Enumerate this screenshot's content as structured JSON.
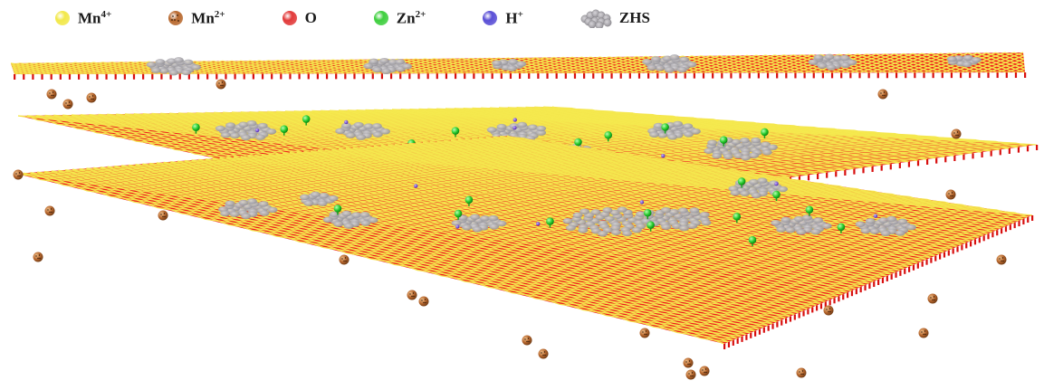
{
  "legend": [
    {
      "id": "mn4",
      "base": "Mn",
      "sup": "4+",
      "symbol": "sphere",
      "color": "#f2e84a"
    },
    {
      "id": "mn2",
      "base": "Mn",
      "sup": "2+",
      "symbol": "dotted-sphere",
      "color": "#b8692f"
    },
    {
      "id": "o",
      "base": "O",
      "sup": "",
      "symbol": "sphere",
      "color": "#e23a3a"
    },
    {
      "id": "zn2",
      "base": "Zn",
      "sup": "2+",
      "symbol": "sphere",
      "color": "#3fcf3f"
    },
    {
      "id": "h",
      "base": "H",
      "sup": "+",
      "symbol": "sphere",
      "color": "#5a4fd6"
    },
    {
      "id": "zhs",
      "base": "ZHS",
      "sup": "",
      "symbol": "cluster",
      "color": "#a9a9ae"
    }
  ],
  "colors": {
    "oxygen": "#ee1c1c",
    "manganese4": "#f4e94e",
    "manganese2": "#b5652c",
    "zinc": "#22d12a",
    "proton": "#6a2bd8",
    "zhs": "#a8a6aa"
  }
}
